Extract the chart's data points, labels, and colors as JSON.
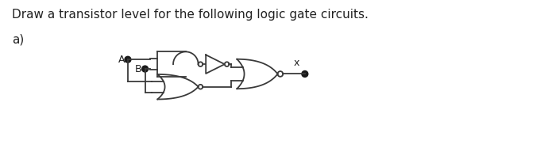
{
  "title_text": "Draw a transistor level for the following logic gate circuits.",
  "label_a": "a)",
  "input_A": "A",
  "input_B": "B",
  "output_label": "x",
  "line_color": "#3a3a3a",
  "dot_color": "#1a1a1a",
  "bg_color": "#ffffff",
  "title_fontsize": 11,
  "label_fontsize": 11,
  "circuit_scale": 1.0
}
